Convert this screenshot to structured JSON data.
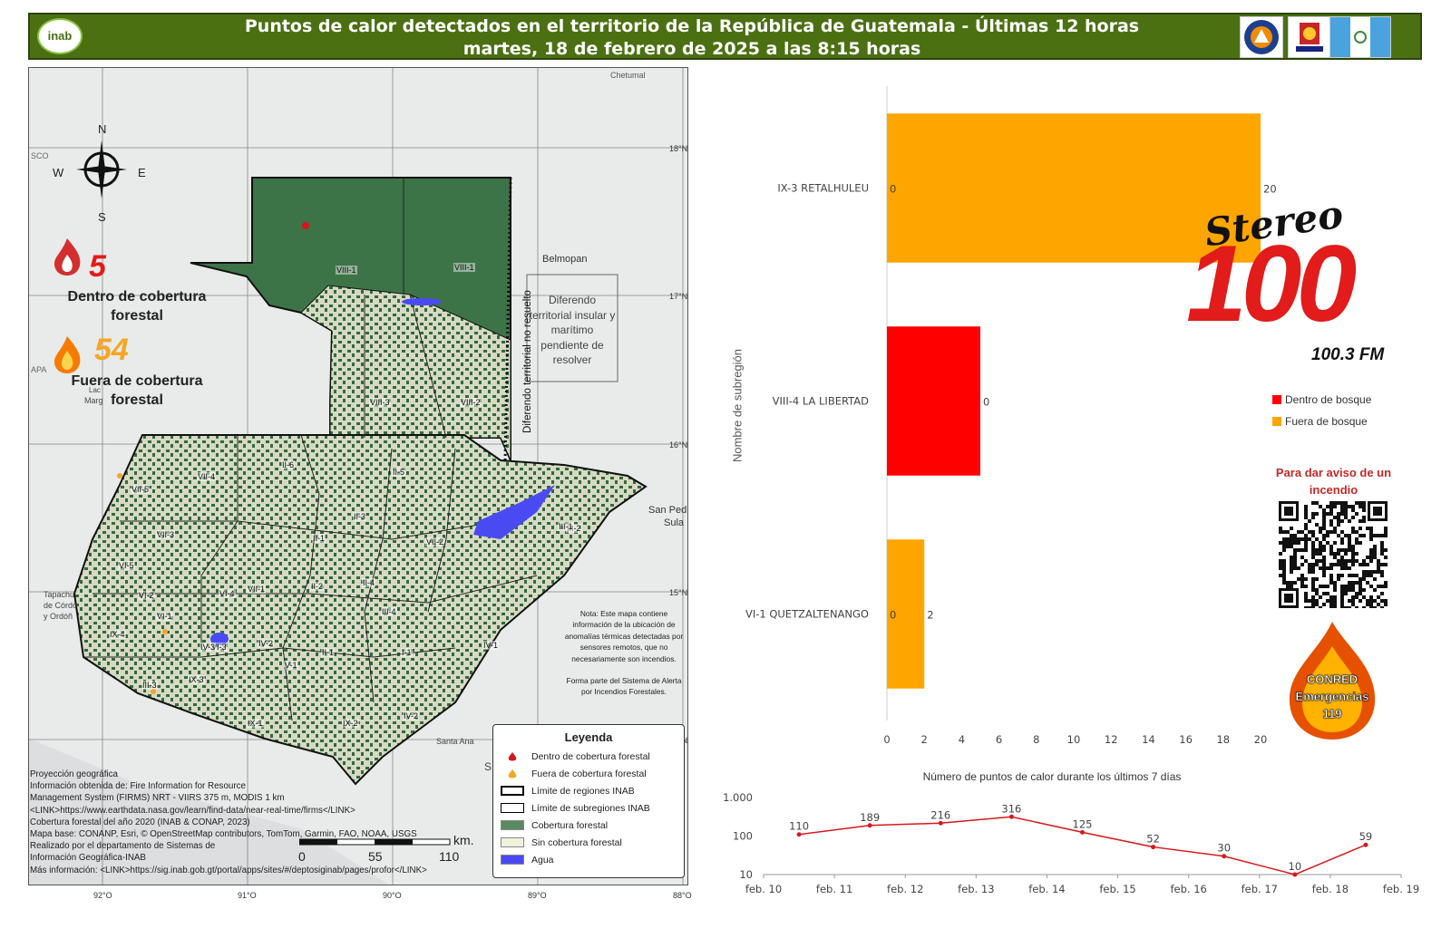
{
  "header": {
    "logo_text": "inab",
    "title_line1": "Puntos de calor detectados en el territorio de la República de Guatemala - Últimas 12 horas",
    "title_line2": "martes, 18 de febrero de 2025 a las 8:15 horas",
    "colors": {
      "bar": "#4b7012"
    }
  },
  "map": {
    "compass": {
      "n": "N",
      "s": "S",
      "e": "E",
      "w": "W"
    },
    "summary": {
      "inside_count": "5",
      "inside_label_l1": "Dentro de cobertura",
      "inside_label_l2": "forestal",
      "outside_count": "54",
      "outside_label_l1": "Fuera de cobertura",
      "outside_label_l2": "forestal"
    },
    "places": {
      "chetumal": "Chetumal",
      "belmopan": "Belmopan",
      "san_pedro": "San Ped",
      "sula": "Sula",
      "santa_ana": "Santa Ana",
      "tapachula": "Tapachu",
      "cordoba": "de Córdo",
      "ordon": "y Ordóñ",
      "marg": "Marg",
      "lac": "Lac",
      "capa": "APA",
      "sco": "SCO",
      "s_letter": "S"
    },
    "dispute_box": "Diferendo territorial insular y marítimo pendiente de resolver",
    "dispute_line": "Diferendo territorial no resuelto",
    "regions": [
      "VIII-1",
      "VIII-1",
      "VIII-3",
      "VIII-2",
      "VII-4",
      "II-6",
      "II-5",
      "VII-5",
      "VII-3",
      "II-3",
      "VII-2",
      "II-1",
      "III-2",
      "III-1",
      "VI-5",
      "VI-2",
      "VII-1",
      "II-2",
      "II-4",
      "II-1",
      "VI-1",
      "III-4",
      "IX-4",
      "VI-3",
      "IV-2",
      "V-1",
      "I-1",
      "IV-1",
      "III-3",
      "IX-3",
      "IX-1",
      "IX-2",
      "IV-2",
      "IV-3",
      "VI-4"
    ],
    "coords_lat": [
      "18°N",
      "17°N",
      "16°N",
      "15°N",
      "14°N"
    ],
    "coords_lon": [
      "92°O",
      "91°O",
      "90°O",
      "89°O",
      "88°O"
    ],
    "scale": {
      "unit": "km.",
      "t0": "0",
      "t1": "55",
      "t2": "110"
    },
    "note": "Nota: Este mapa contiene información de la ubicación de anomalías térmicas detectadas por sensores remotos, que no necesariamente son incendios.",
    "note2": "Forma parte del Sistema de Alerta por Incendios Forestales.",
    "legend": {
      "title": "Leyenda",
      "items": [
        {
          "label": "Dentro de cobertura forestal",
          "color": "#d9141b"
        },
        {
          "label": "Fuera de cobertura forestal",
          "color": "#f5a623"
        },
        {
          "label": "Límite de regiones INAB",
          "color": "#000000"
        },
        {
          "label": "Límite de subregiones INAB",
          "color": "#000000"
        },
        {
          "label": "Cobertura forestal",
          "color": "#5a8a62"
        },
        {
          "label": "Sin cobertura forestal",
          "color": "#f1f2dc"
        },
        {
          "label": "Agua",
          "color": "#4a4af2"
        }
      ]
    },
    "credits": [
      "Proyección geográfica",
      "Información obtenida de: Fire Information for Resource",
      "Management System (FIRMS) NRT - VIIRS 375 m, MODIS 1 km",
      "<LINK>https://www.earthdata.nasa.gov/learn/find-data/near-real-time/firms</LINK>",
      "Cobertura forestal del año 2020 (INAB & CONAP, 2023)",
      "Mapa base: CONANP, Esri, © OpenStreetMap contributors, TomTom, Garmin, FAO, NOAA, USGS",
      "Realizado por el departamento de Sistemas de",
      "Información Geográfica-INAB",
      "Más información: <LINK>https://sig.inab.gob.gt/portal/apps/sites/#/deptosiginab/pages/profor</LINK>"
    ]
  },
  "chart_data": [
    {
      "type": "bar",
      "orientation": "horizontal",
      "categories": [
        "IX-3 RETALHULEU",
        "VIII-4 LA LIBERTAD",
        "VI-1 QUETZALTENANGO"
      ],
      "series": [
        {
          "name": "Dentro de bosque",
          "color": "#ff0000",
          "values": [
            0,
            5,
            0
          ]
        },
        {
          "name": "Fuera de bosque",
          "color": "#ffa500",
          "values": [
            20,
            0,
            2
          ]
        }
      ],
      "value_labels": [
        [
          "0",
          "20"
        ],
        [
          "",
          "0"
        ],
        [
          "0",
          "2"
        ]
      ],
      "ylabel": "Nombre de subregión",
      "xlim": [
        0,
        20
      ],
      "xticks": [
        "0",
        "2",
        "4",
        "6",
        "8",
        "10",
        "12",
        "14",
        "16",
        "18",
        "20"
      ],
      "legend_position": "right"
    },
    {
      "type": "line",
      "title": "Número de puntos de calor durante los últimos 7 días",
      "y_scale": "log",
      "ylim": [
        10,
        1000
      ],
      "yticks": [
        "10",
        "100",
        "1.000"
      ],
      "x_ticks": [
        "feb. 10",
        "feb. 11",
        "feb. 12",
        "feb. 13",
        "feb. 14",
        "feb. 15",
        "feb. 16",
        "feb. 17",
        "feb. 18",
        "feb. 19"
      ],
      "points": [
        {
          "date": "2025-02-10 12:00",
          "value": 110
        },
        {
          "date": "2025-02-11 12:00",
          "value": 189
        },
        {
          "date": "2025-02-12 12:00",
          "value": 216
        },
        {
          "date": "2025-02-13 12:00",
          "value": 316
        },
        {
          "date": "2025-02-14 12:00",
          "value": 125
        },
        {
          "date": "2025-02-15 12:00",
          "value": 52
        },
        {
          "date": "2025-02-16 12:00",
          "value": 30
        },
        {
          "date": "2025-02-17 12:00",
          "value": 10
        },
        {
          "date": "2025-02-18 12:00",
          "value": 59
        }
      ],
      "color": "#d7191c"
    }
  ],
  "side": {
    "stereo": "Stereo",
    "num": "100",
    "fm": "100.3 FM",
    "alert_l1": "Para dar aviso de un",
    "alert_l2": "incendio",
    "conred_l1": "CONRED",
    "conred_l2": "Emergencias",
    "conred_l3": "119"
  }
}
